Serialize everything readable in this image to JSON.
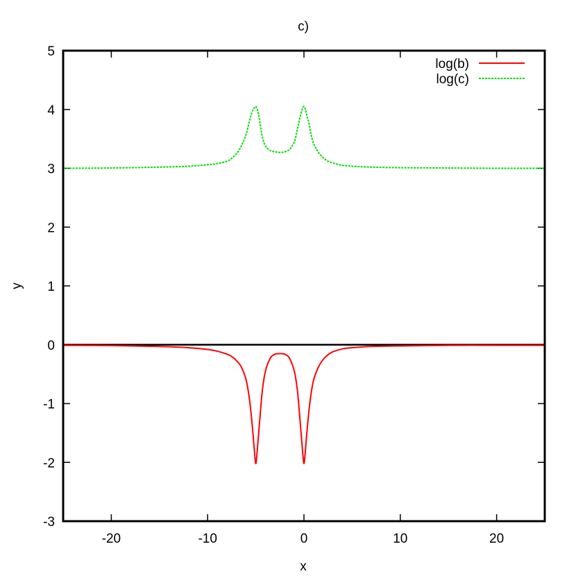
{
  "chart_data": {
    "type": "line",
    "title": "c)",
    "xlabel": "x",
    "ylabel": "y",
    "xlim": [
      -25,
      25
    ],
    "ylim": [
      -3,
      5
    ],
    "xticks": [
      -20,
      -10,
      0,
      10,
      20
    ],
    "yticks": [
      -3,
      -2,
      -1,
      0,
      1,
      2,
      3,
      4,
      5
    ],
    "legend_position": "top-right",
    "grid": false,
    "zero_line": true,
    "series": [
      {
        "name": "log(b)",
        "color": "#ff0000",
        "style": "solid",
        "x": [
          -25,
          -20,
          -15,
          -12,
          -10,
          -9,
          -8,
          -7.5,
          -7,
          -6.5,
          -6,
          -5.7,
          -5.5,
          -5.3,
          -5.15,
          -5.05,
          -5,
          -4.95,
          -4.85,
          -4.7,
          -4.5,
          -4.3,
          -4,
          -3.5,
          -3,
          -2.5,
          -2,
          -1.5,
          -1,
          -0.7,
          -0.5,
          -0.3,
          -0.15,
          -0.05,
          0,
          0.05,
          0.15,
          0.3,
          0.5,
          0.7,
          1,
          1.5,
          2,
          2.5,
          3,
          4,
          5,
          7,
          10,
          15,
          20,
          25
        ],
        "y": [
          -0.01,
          -0.015,
          -0.03,
          -0.05,
          -0.08,
          -0.11,
          -0.16,
          -0.2,
          -0.27,
          -0.38,
          -0.6,
          -0.88,
          -1.15,
          -1.5,
          -1.8,
          -1.98,
          -2.02,
          -1.98,
          -1.8,
          -1.5,
          -1.1,
          -0.75,
          -0.45,
          -0.23,
          -0.16,
          -0.15,
          -0.16,
          -0.23,
          -0.45,
          -0.75,
          -1.1,
          -1.5,
          -1.8,
          -1.98,
          -2.02,
          -1.98,
          -1.8,
          -1.5,
          -1.15,
          -0.88,
          -0.6,
          -0.38,
          -0.25,
          -0.17,
          -0.12,
          -0.07,
          -0.05,
          -0.03,
          -0.02,
          -0.01,
          -0.01,
          -0.01
        ]
      },
      {
        "name": "log(c)",
        "color": "#00dd00",
        "style": "dashed",
        "x": [
          -25,
          -20,
          -15,
          -12,
          -10,
          -9,
          -8,
          -7.5,
          -7,
          -6.5,
          -6,
          -5.7,
          -5.5,
          -5.3,
          -5.15,
          -5.05,
          -5,
          -4.95,
          -4.85,
          -4.7,
          -4.5,
          -4.3,
          -4,
          -3.5,
          -3,
          -2.5,
          -2,
          -1.5,
          -1,
          -0.7,
          -0.5,
          -0.3,
          -0.15,
          -0.05,
          0,
          0.05,
          0.15,
          0.3,
          0.5,
          0.7,
          1,
          1.5,
          2,
          2.5,
          3,
          4,
          5,
          7,
          10,
          15,
          20,
          25
        ],
        "y": [
          3.0,
          3.005,
          3.02,
          3.035,
          3.06,
          3.08,
          3.12,
          3.17,
          3.25,
          3.38,
          3.58,
          3.78,
          3.9,
          3.99,
          4.03,
          4.05,
          4.05,
          4.04,
          4.0,
          3.9,
          3.7,
          3.52,
          3.38,
          3.3,
          3.28,
          3.27,
          3.28,
          3.32,
          3.45,
          3.65,
          3.8,
          3.94,
          4.02,
          4.05,
          4.05,
          4.04,
          4.0,
          3.9,
          3.78,
          3.6,
          3.42,
          3.27,
          3.18,
          3.12,
          3.09,
          3.05,
          3.035,
          3.02,
          3.01,
          3.005,
          3.0,
          3.0
        ]
      }
    ]
  }
}
